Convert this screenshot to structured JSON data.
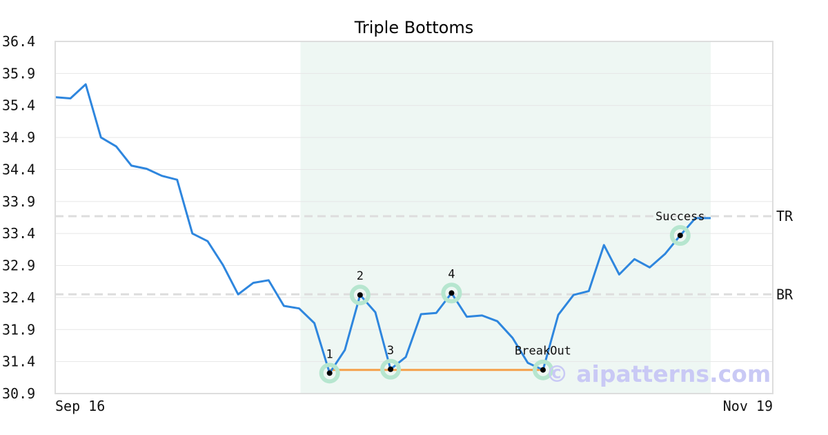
{
  "chart_data": {
    "type": "line",
    "title": "Triple Bottoms",
    "xlabel": "",
    "ylabel": "",
    "ylim": [
      30.9,
      36.4
    ],
    "y_ticks": [
      "36.4",
      "35.9",
      "35.4",
      "34.9",
      "34.4",
      "33.9",
      "33.4",
      "32.9",
      "32.4",
      "31.9",
      "31.4",
      "30.9"
    ],
    "x_tick_labels": [
      "Sep 16",
      "Nov 19"
    ],
    "grid": true,
    "legend": "none",
    "series": [
      {
        "color": "#2e86de",
        "values": [
          35.53,
          35.51,
          35.73,
          34.9,
          34.76,
          34.46,
          34.41,
          34.3,
          34.24,
          33.4,
          33.28,
          32.91,
          32.45,
          32.63,
          32.67,
          32.27,
          32.23,
          32.0,
          31.22,
          31.58,
          32.44,
          32.17,
          31.28,
          31.47,
          32.14,
          32.16,
          32.47,
          32.1,
          32.12,
          32.03,
          31.77,
          31.38,
          31.27,
          32.13,
          32.44,
          32.5,
          33.22,
          32.76,
          33.0,
          32.87,
          33.08,
          33.37,
          33.64,
          33.64
        ]
      }
    ],
    "shaded_region": {
      "from_index": 16,
      "to_index": 43,
      "color": "#eef7f3"
    },
    "levels": [
      {
        "label": "TR",
        "value": 33.67,
        "color": "#dddddd"
      },
      {
        "label": "BR",
        "value": 32.45,
        "color": "#dddddd"
      }
    ],
    "support_line": {
      "from_index": 18,
      "to_index": 32,
      "value": 31.27,
      "color": "#f5a04a"
    },
    "markers": [
      {
        "label": "1",
        "index": 18,
        "value": 31.22
      },
      {
        "label": "2",
        "index": 20,
        "value": 32.44
      },
      {
        "label": "3",
        "index": 22,
        "value": 31.28
      },
      {
        "label": "4",
        "index": 26,
        "value": 32.47
      },
      {
        "label": "BreakOut",
        "index": 32,
        "value": 31.27
      },
      {
        "label": "Success",
        "index": 41,
        "value": 33.37
      }
    ],
    "watermark": "© aipatterns.com"
  }
}
